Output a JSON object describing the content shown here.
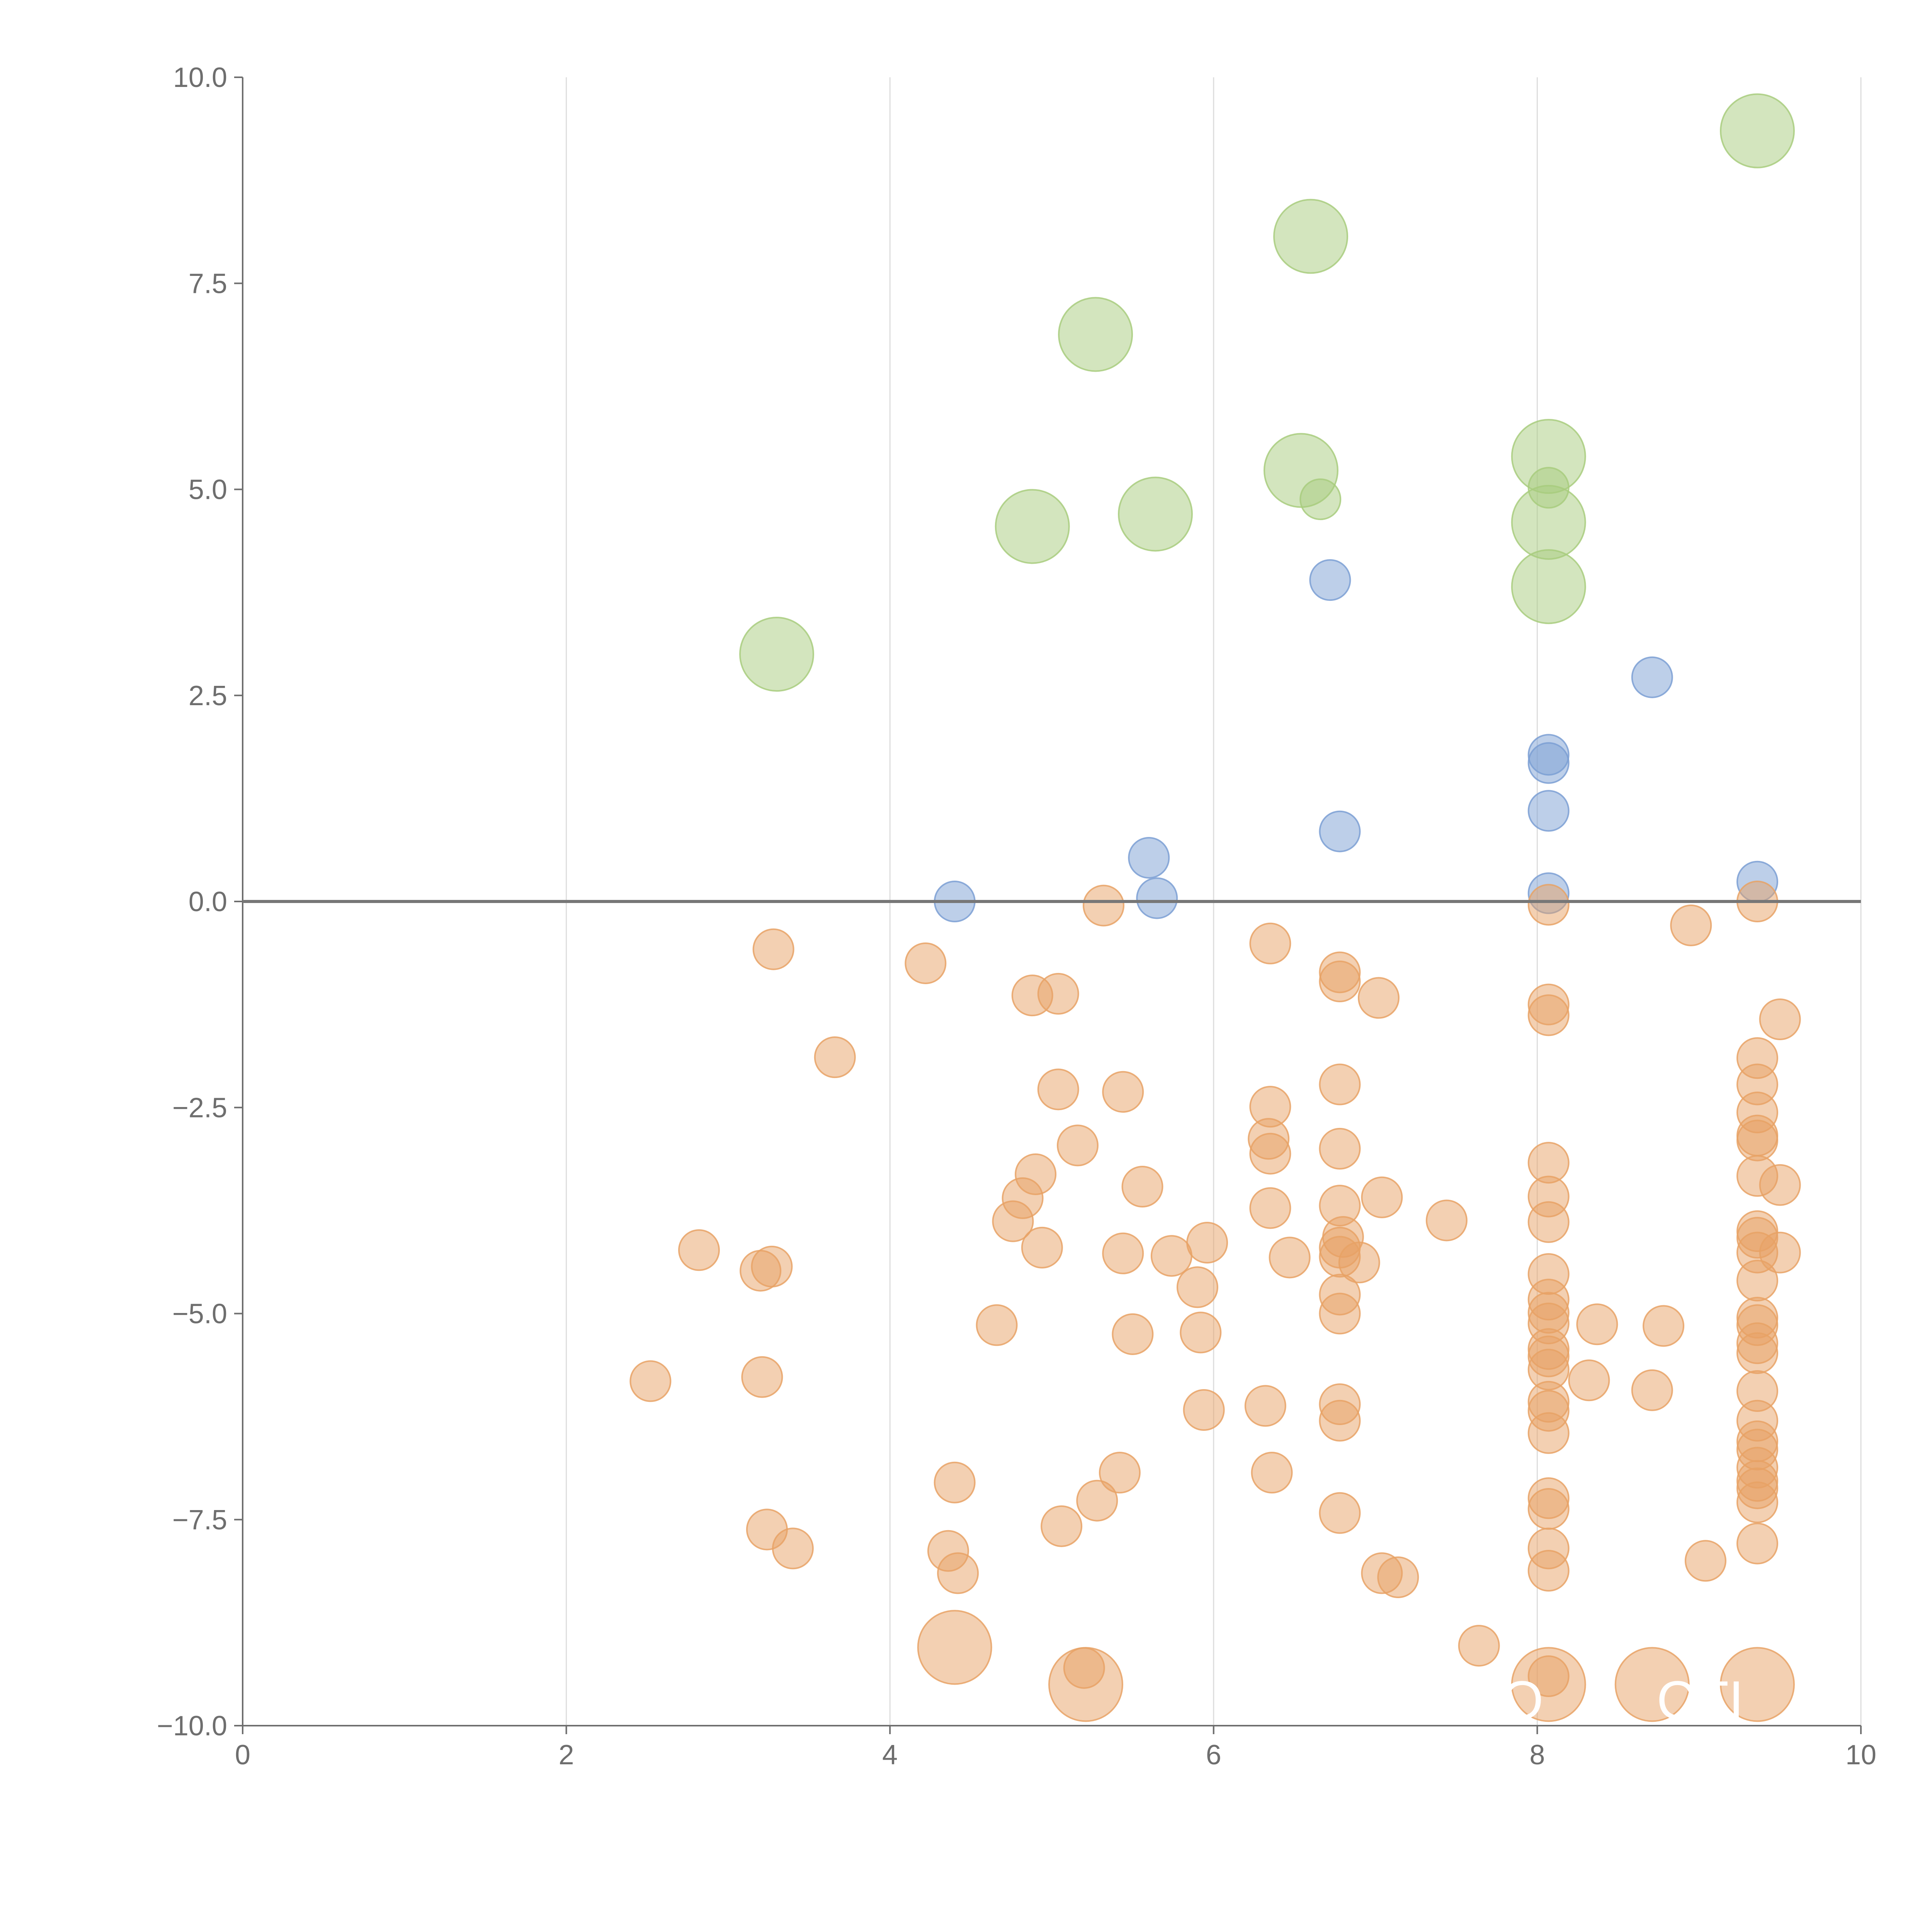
{
  "chart_data": {
    "type": "scatter",
    "title": "",
    "xlabel": "",
    "ylabel": "",
    "xlim": [
      0,
      10
    ],
    "ylim": [
      -10,
      10
    ],
    "x_ticks": [
      0,
      2,
      4,
      6,
      8,
      10
    ],
    "y_ticks": [
      -10,
      -7.5,
      -5,
      -2.5,
      0,
      2.5,
      5,
      7.5,
      10
    ],
    "x_tick_labels": [
      "0",
      "2",
      "4",
      "6",
      "8",
      "10"
    ],
    "y_tick_labels": [
      "−10.0",
      "−7.5",
      "−5.0",
      "−2.5",
      "0.0",
      "2.5",
      "5.0",
      "7.5",
      "10.0"
    ],
    "grid": "vertical",
    "zero_line": true,
    "legend": "none",
    "series": [
      {
        "name": "large-positive",
        "color": "#a8cc7e",
        "size": "large",
        "points": [
          [
            3.3,
            3.0
          ],
          [
            4.88,
            4.55
          ],
          [
            5.27,
            6.88
          ],
          [
            5.64,
            4.7
          ],
          [
            6.54,
            5.23
          ],
          [
            6.6,
            8.07
          ],
          [
            8.07,
            5.4
          ],
          [
            8.07,
            4.6
          ],
          [
            8.07,
            3.82
          ],
          [
            9.36,
            9.35
          ]
        ]
      },
      {
        "name": "small-positive-green",
        "color": "#a8cc7e",
        "size": "small",
        "points": [
          [
            6.66,
            4.88
          ],
          [
            8.07,
            5.02
          ]
        ]
      },
      {
        "name": "small-positive",
        "color": "#7b9fd4",
        "size": "small",
        "points": [
          [
            4.4,
            0.0
          ],
          [
            5.6,
            0.53
          ],
          [
            5.65,
            0.04
          ],
          [
            6.72,
            3.9
          ],
          [
            6.78,
            0.85
          ],
          [
            8.07,
            1.78
          ],
          [
            8.07,
            1.68
          ],
          [
            8.07,
            1.1
          ],
          [
            8.07,
            0.1
          ],
          [
            8.71,
            2.72
          ],
          [
            9.36,
            0.24
          ]
        ]
      },
      {
        "name": "small-negative",
        "color": "#e8a265",
        "size": "small",
        "points": [
          [
            2.52,
            -5.82
          ],
          [
            2.82,
            -4.23
          ],
          [
            3.2,
            -4.48
          ],
          [
            3.21,
            -5.77
          ],
          [
            3.24,
            -7.62
          ],
          [
            3.27,
            -4.43
          ],
          [
            3.28,
            -0.58
          ],
          [
            3.4,
            -7.85
          ],
          [
            3.66,
            -1.89
          ],
          [
            4.22,
            -0.75
          ],
          [
            4.36,
            -7.88
          ],
          [
            4.4,
            -7.05
          ],
          [
            4.42,
            -8.15
          ],
          [
            4.66,
            -5.14
          ],
          [
            4.76,
            -3.88
          ],
          [
            4.82,
            -3.6
          ],
          [
            4.88,
            -1.14
          ],
          [
            4.9,
            -3.31
          ],
          [
            4.94,
            -4.2
          ],
          [
            5.04,
            -1.12
          ],
          [
            5.04,
            -2.28
          ],
          [
            5.06,
            -7.58
          ],
          [
            5.16,
            -2.96
          ],
          [
            5.2,
            -9.3
          ],
          [
            5.28,
            -7.27
          ],
          [
            5.32,
            -0.05
          ],
          [
            5.42,
            -6.93
          ],
          [
            5.44,
            -4.27
          ],
          [
            5.44,
            -2.31
          ],
          [
            5.5,
            -5.25
          ],
          [
            5.56,
            -3.46
          ],
          [
            5.74,
            -4.3
          ],
          [
            5.9,
            -4.68
          ],
          [
            5.92,
            -5.23
          ],
          [
            5.94,
            -6.17
          ],
          [
            5.96,
            -4.14
          ],
          [
            6.32,
            -6.12
          ],
          [
            6.34,
            -2.88
          ],
          [
            6.35,
            -0.51
          ],
          [
            6.35,
            -2.49
          ],
          [
            6.35,
            -3.06
          ],
          [
            6.35,
            -3.72
          ],
          [
            6.36,
            -6.93
          ],
          [
            6.47,
            -4.32
          ],
          [
            6.78,
            -0.86
          ],
          [
            6.78,
            -0.97
          ],
          [
            6.78,
            -2.22
          ],
          [
            6.78,
            -3.0
          ],
          [
            6.78,
            -3.69
          ],
          [
            6.8,
            -4.07
          ],
          [
            6.78,
            -4.2
          ],
          [
            6.78,
            -4.31
          ],
          [
            6.78,
            -4.77
          ],
          [
            6.78,
            -5.0
          ],
          [
            6.78,
            -6.1
          ],
          [
            6.78,
            -6.3
          ],
          [
            6.78,
            -7.42
          ],
          [
            6.9,
            -4.38
          ],
          [
            7.02,
            -1.17
          ],
          [
            7.04,
            -3.59
          ],
          [
            7.04,
            -8.15
          ],
          [
            7.14,
            -8.2
          ],
          [
            7.44,
            -3.87
          ],
          [
            7.64,
            -9.03
          ],
          [
            8.07,
            -0.04
          ],
          [
            8.07,
            -1.25
          ],
          [
            8.07,
            -1.38
          ],
          [
            8.07,
            -3.17
          ],
          [
            8.07,
            -3.58
          ],
          [
            8.07,
            -3.89
          ],
          [
            8.07,
            -4.52
          ],
          [
            8.07,
            -4.83
          ],
          [
            8.07,
            -4.99
          ],
          [
            8.07,
            -5.12
          ],
          [
            8.07,
            -5.43
          ],
          [
            8.07,
            -5.52
          ],
          [
            8.07,
            -5.68
          ],
          [
            8.07,
            -6.07
          ],
          [
            8.07,
            -6.18
          ],
          [
            8.07,
            -6.45
          ],
          [
            8.07,
            -7.24
          ],
          [
            8.07,
            -7.37
          ],
          [
            8.07,
            -7.85
          ],
          [
            8.07,
            -8.12
          ],
          [
            8.07,
            -9.4
          ],
          [
            8.32,
            -5.81
          ],
          [
            8.37,
            -5.13
          ],
          [
            8.71,
            -5.93
          ],
          [
            8.78,
            -5.15
          ],
          [
            8.95,
            -0.29
          ],
          [
            9.04,
            -8.0
          ],
          [
            9.36,
            -0.0
          ],
          [
            9.36,
            -1.9
          ],
          [
            9.36,
            -2.22
          ],
          [
            9.36,
            -2.56
          ],
          [
            9.36,
            -2.84
          ],
          [
            9.36,
            -2.9
          ],
          [
            9.36,
            -3.33
          ],
          [
            9.36,
            -4.0
          ],
          [
            9.36,
            -4.08
          ],
          [
            9.36,
            -4.26
          ],
          [
            9.36,
            -4.6
          ],
          [
            9.36,
            -5.05
          ],
          [
            9.36,
            -5.14
          ],
          [
            9.36,
            -5.36
          ],
          [
            9.36,
            -5.48
          ],
          [
            9.36,
            -5.94
          ],
          [
            9.36,
            -6.3
          ],
          [
            9.36,
            -6.55
          ],
          [
            9.36,
            -6.65
          ],
          [
            9.36,
            -6.87
          ],
          [
            9.36,
            -7.03
          ],
          [
            9.36,
            -7.12
          ],
          [
            9.36,
            -7.29
          ],
          [
            9.36,
            -7.79
          ],
          [
            9.5,
            -1.43
          ],
          [
            9.5,
            -3.44
          ],
          [
            9.5,
            -4.26
          ]
        ]
      },
      {
        "name": "large-negative",
        "color": "#e8a265",
        "size": "large",
        "points": [
          [
            4.4,
            -9.05
          ],
          [
            5.21,
            -9.5
          ],
          [
            8.07,
            -9.5
          ],
          [
            8.71,
            -9.5
          ],
          [
            9.36,
            -9.5
          ]
        ]
      }
    ],
    "annotations": [
      "O",
      "O",
      "CTI"
    ]
  }
}
